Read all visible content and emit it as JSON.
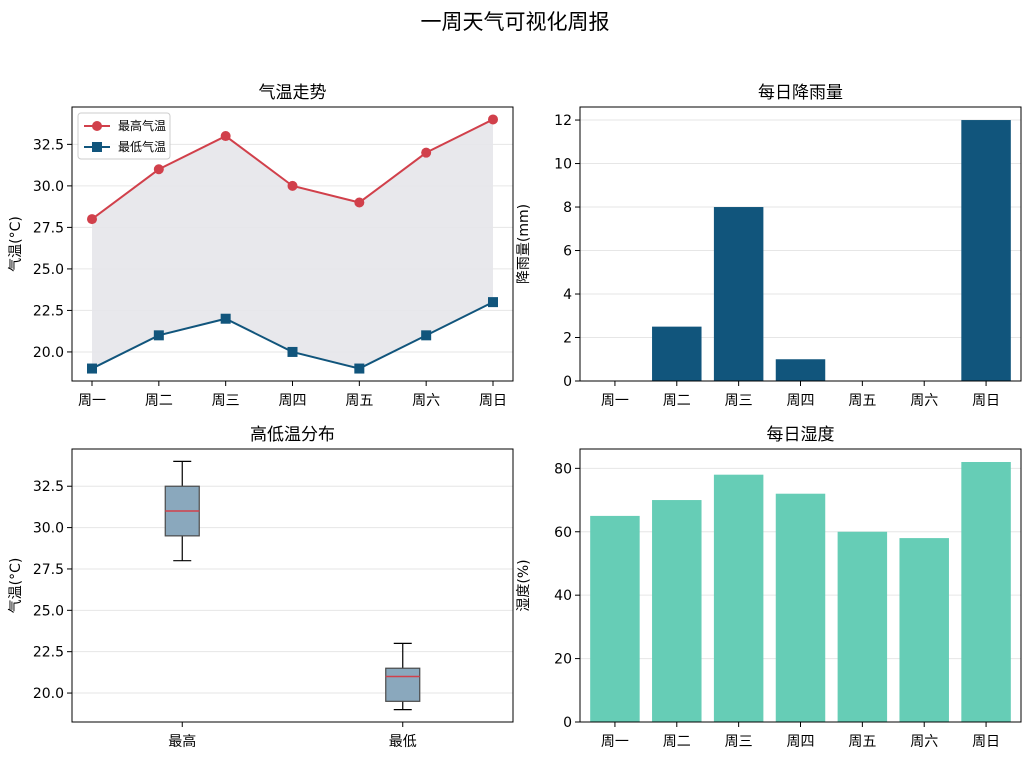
{
  "figure": {
    "title": "一周天气可视化周报"
  },
  "colors": {
    "max_line": "#d1404b",
    "min_line": "#11557c",
    "fill_between": "#e5e6ea",
    "rain_bar": "#11557c",
    "humidity_bar": "#66cdb6",
    "box_fill": "#8aa8bd",
    "box_edge": "#4a4a4a",
    "median": "#d1404b",
    "grid": "#e6e6e6"
  },
  "chart_data": [
    {
      "id": "temp_trend",
      "type": "line",
      "title": "气温走势",
      "xlabel": "",
      "ylabel": "气温(°C)",
      "categories": [
        "周一",
        "周二",
        "周三",
        "周四",
        "周五",
        "周六",
        "周日"
      ],
      "series": [
        {
          "name": "最高气温",
          "values": [
            28,
            31,
            33,
            30,
            29,
            32,
            34
          ],
          "marker": "circle"
        },
        {
          "name": "最低气温",
          "values": [
            19,
            21,
            22,
            20,
            19,
            21,
            23
          ],
          "marker": "square"
        }
      ],
      "ylim": [
        18.25,
        34.75
      ],
      "yticks": [
        20.0,
        22.5,
        25.0,
        27.5,
        30.0,
        32.5
      ],
      "ytick_labels": [
        "20.0",
        "22.5",
        "25.0",
        "27.5",
        "30.0",
        "32.5"
      ],
      "grid": "y",
      "legend": "upper-left",
      "fill_between": true
    },
    {
      "id": "rainfall",
      "type": "bar",
      "title": "每日降雨量",
      "xlabel": "",
      "ylabel": "降雨量(mm)",
      "categories": [
        "周一",
        "周二",
        "周三",
        "周四",
        "周五",
        "周六",
        "周日"
      ],
      "values": [
        0,
        2.5,
        8,
        1,
        0,
        0,
        12
      ],
      "ylim": [
        0,
        12.6
      ],
      "yticks": [
        0,
        2,
        4,
        6,
        8,
        10,
        12
      ],
      "ytick_labels": [
        "0",
        "2",
        "4",
        "6",
        "8",
        "10",
        "12"
      ],
      "grid": "y"
    },
    {
      "id": "temp_box",
      "type": "box",
      "title": "高低温分布",
      "xlabel": "",
      "ylabel": "气温(°C)",
      "categories": [
        "最高",
        "最低"
      ],
      "boxes": [
        {
          "min": 28,
          "q1": 29.5,
          "median": 31,
          "q3": 32.5,
          "max": 34
        },
        {
          "min": 19,
          "q1": 19.5,
          "median": 21,
          "q3": 21.5,
          "max": 23
        }
      ],
      "ylim": [
        18.25,
        34.75
      ],
      "yticks": [
        20.0,
        22.5,
        25.0,
        27.5,
        30.0,
        32.5
      ],
      "ytick_labels": [
        "20.0",
        "22.5",
        "25.0",
        "27.5",
        "30.0",
        "32.5"
      ],
      "grid": "y"
    },
    {
      "id": "humidity",
      "type": "bar",
      "title": "每日湿度",
      "xlabel": "",
      "ylabel": "湿度(%)",
      "categories": [
        "周一",
        "周二",
        "周三",
        "周四",
        "周五",
        "周六",
        "周日"
      ],
      "values": [
        65,
        70,
        78,
        72,
        60,
        58,
        82
      ],
      "ylim": [
        0,
        86.1
      ],
      "yticks": [
        0,
        20,
        40,
        60,
        80
      ],
      "ytick_labels": [
        "0",
        "20",
        "40",
        "60",
        "80"
      ],
      "grid": "y"
    }
  ]
}
